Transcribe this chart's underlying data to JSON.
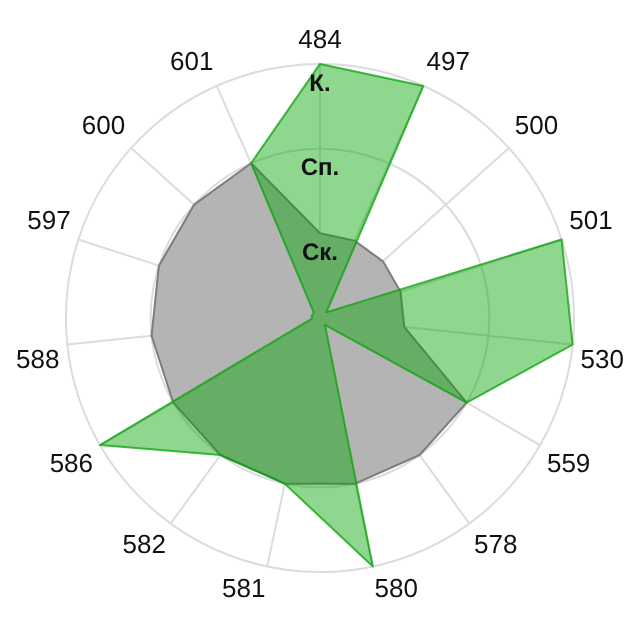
{
  "chart_data": {
    "type": "radar",
    "categories": [
      "484",
      "497",
      "500",
      "501",
      "530",
      "559",
      "578",
      "580",
      "581",
      "582",
      "586",
      "588",
      "597",
      "600",
      "601"
    ],
    "ylim": [
      0,
      3
    ],
    "yticks": [
      {
        "value": 1,
        "label": "Ск."
      },
      {
        "value": 2,
        "label": "Сп."
      },
      {
        "value": 3,
        "label": "К."
      }
    ],
    "grid": true,
    "legend": false,
    "marker": "none",
    "series": [
      {
        "color": "#b4b4b4",
        "values": [
          1,
          1,
          1,
          1,
          1,
          2,
          2,
          2,
          2,
          2,
          2,
          2,
          2,
          2,
          2
        ]
      },
      {
        "color": "#07a407",
        "values": [
          3,
          3,
          0.1,
          3,
          3,
          2,
          0.1,
          3,
          2,
          2,
          3,
          0.1,
          0.1,
          0.1,
          2
        ]
      }
    ]
  }
}
